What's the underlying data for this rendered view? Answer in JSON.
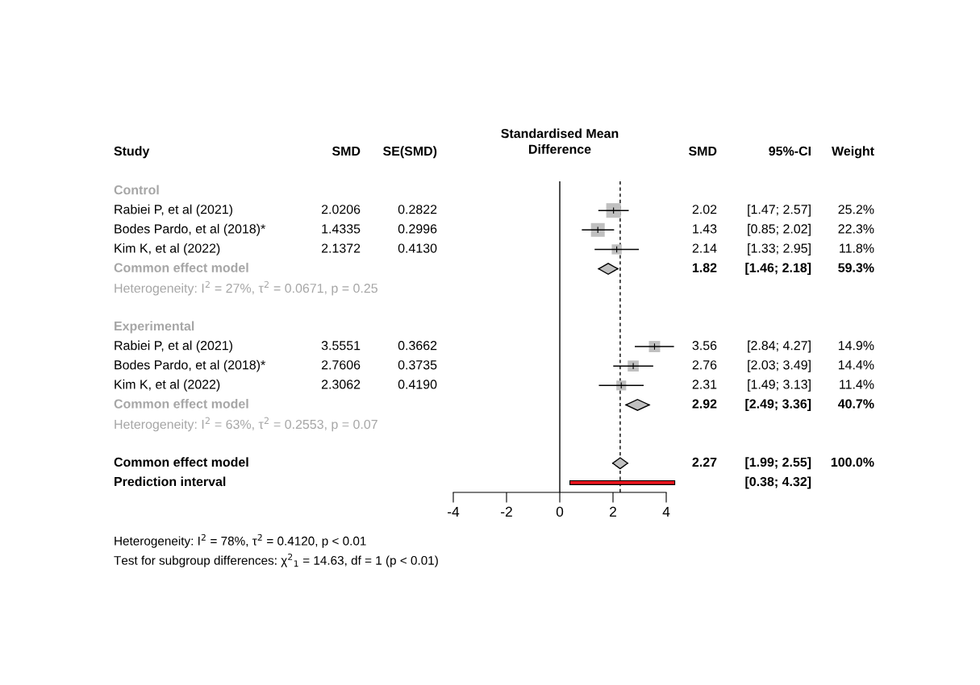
{
  "chart_data": {
    "type": "scatter",
    "orientation": "horizontal",
    "title": "Standardised Mean\nDifference",
    "ylabel": "Study",
    "categories": [
      "Control",
      "Rabiei P, et al (2021)",
      "Bodes Pardo, et al (2018)*",
      "Kim K, et al (2022)",
      "Common effect model",
      "Heterogeneity: I$^{2}$ = 27%, τ$^{2}$ = 0.0671, p = 0.25",
      null,
      "Experimental",
      "Rabiei P, et al (2021)",
      "Bodes Pardo, et al (2018)*",
      "Kim K, et al (2022)",
      "Common effect model",
      "Heterogeneity: I$^{2}$ = 63%, τ$^{2}$ = 0.2553, p = 0.07",
      null,
      "Common effect model",
      "Prediction interval"
    ],
    "xlim": [
      -4,
      4
    ],
    "xticks": [
      -4,
      -2,
      0,
      2,
      4
    ],
    "tick_labels": "x",
    "grid": false,
    "legend": false,
    "series": [
      {
        "type": "scatter",
        "marker": "square",
        "color": "#c0c0c0",
        "values": [
          null,
          2.02,
          1.43,
          2.14,
          null,
          null,
          null,
          null,
          3.56,
          2.76,
          2.31,
          null,
          null,
          null,
          null,
          null
        ],
        "errors": [
          null,
          [
            1.47,
            2.57
          ],
          [
            0.85,
            2.02
          ],
          [
            1.33,
            2.95
          ],
          null,
          null,
          null,
          null,
          [
            2.84,
            4.27
          ],
          [
            2.03,
            3.49
          ],
          [
            1.49,
            3.13
          ],
          null,
          null,
          null,
          null,
          null
        ],
        "sizes": [
          null,
          1,
          0.885,
          0.468,
          null,
          null,
          null,
          null,
          0.591,
          0.571,
          0.452,
          null,
          null,
          null,
          null,
          null
        ]
      },
      {
        "type": "scatter",
        "marker": "diamond",
        "color": "#c0c0c0",
        "values": [
          null,
          null,
          null,
          null,
          1.82,
          null,
          null,
          null,
          null,
          null,
          null,
          2.92,
          null,
          null,
          2.27,
          null
        ],
        "errors": [
          null,
          null,
          null,
          null,
          [
            1.46,
            2.18
          ],
          null,
          null,
          null,
          null,
          null,
          null,
          [
            2.49,
            3.36
          ],
          null,
          null,
          [
            1.99,
            2.55
          ],
          null
        ]
      },
      {
        "type": "bar",
        "color": "#e8141c",
        "base": [
          null,
          null,
          null,
          null,
          null,
          null,
          null,
          null,
          null,
          null,
          null,
          null,
          null,
          null,
          null,
          0.38
        ],
        "values": [
          null,
          null,
          null,
          null,
          null,
          null,
          null,
          null,
          null,
          null,
          null,
          null,
          null,
          null,
          null,
          3.94
        ]
      },
      {
        "type": "other",
        "name": "SMD",
        "values": [
          null,
          null,
          null,
          null,
          null,
          null,
          null,
          null,
          null,
          null,
          null,
          null,
          null,
          null,
          null,
          null
        ],
        "value_labels": [
          null,
          "2.0206",
          "1.4335",
          "2.1372",
          null,
          null,
          null,
          null,
          "3.5551",
          "2.7606",
          "2.3062",
          null,
          null,
          null,
          null,
          null
        ]
      },
      {
        "type": "other",
        "name": "SE(SMD)",
        "values": [
          null,
          null,
          null,
          null,
          null,
          null,
          null,
          null,
          null,
          null,
          null,
          null,
          null,
          null,
          null,
          null
        ],
        "value_labels": [
          null,
          "0.2822",
          "0.2996",
          "0.4130",
          null,
          null,
          null,
          null,
          "0.3662",
          "0.3735",
          "0.4190",
          null,
          null,
          null,
          null,
          null
        ]
      },
      {
        "type": "other",
        "name": "SMD",
        "values": [
          null,
          null,
          null,
          null,
          null,
          null,
          null,
          null,
          null,
          null,
          null,
          null,
          null,
          null,
          null,
          null
        ],
        "value_labels": [
          null,
          "2.02",
          "1.43",
          "2.14",
          "1.82",
          null,
          null,
          null,
          "3.56",
          "2.76",
          "2.31",
          "2.92",
          null,
          null,
          "2.27",
          null
        ]
      },
      {
        "type": "other",
        "name": "95%-CI",
        "values": [
          null,
          null,
          null,
          null,
          null,
          null,
          null,
          null,
          null,
          null,
          null,
          null,
          null,
          null,
          null,
          null
        ],
        "value_labels": [
          null,
          "[1.47; 2.57]",
          "[0.85; 2.02]",
          "[1.33; 2.95]",
          "[1.46; 2.18]",
          null,
          null,
          null,
          "[2.84; 4.27]",
          "[2.03; 3.49]",
          "[1.49; 3.13]",
          "[2.49; 3.36]",
          null,
          null,
          "[1.99; 2.55]",
          "[0.38; 4.32]"
        ]
      },
      {
        "type": "other",
        "name": "Weight",
        "values": [
          null,
          null,
          null,
          null,
          null,
          null,
          null,
          null,
          null,
          null,
          null,
          null,
          null,
          null,
          null,
          null
        ],
        "value_labels": [
          null,
          "25.2%",
          "22.3%",
          "11.8%",
          "59.3%",
          null,
          null,
          null,
          "14.9%",
          "14.4%",
          "11.4%",
          "40.7%",
          null,
          null,
          "100.0%",
          null
        ]
      }
    ],
    "ref_lines": [
      {
        "axis": "x",
        "value": 0,
        "line_style": "solid",
        "color": "#000000"
      },
      {
        "axis": "x",
        "value": 2.27,
        "line_style": "dashed",
        "color": "#000000"
      }
    ],
    "annotations": [
      "Heterogeneity: I$^{2}$ = 78%, τ$^{2}$ = 0.4120, p < 0.01",
      "Test for subgroup differences: χ$^{2}$$_{1}$ = 14.63, df = 1 (p < 0.01)"
    ]
  }
}
